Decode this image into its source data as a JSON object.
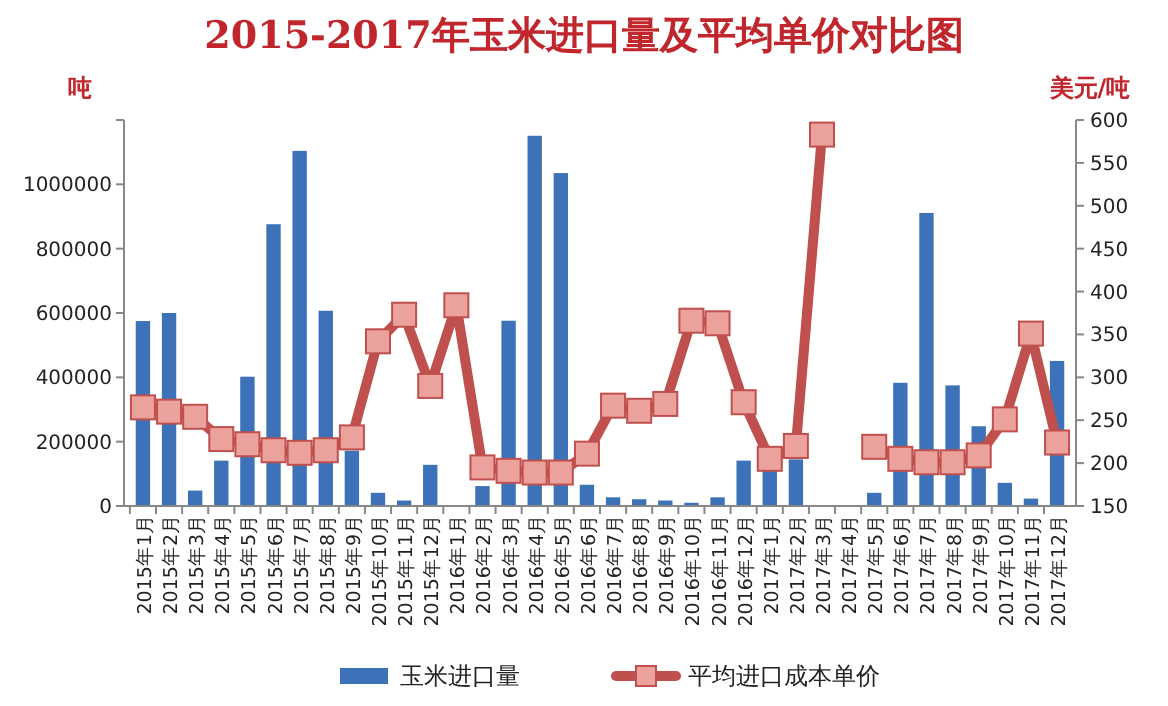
{
  "chart_data": {
    "type": "bar",
    "title": "2015-2017年玉米进口量及平均单价对比图",
    "ylabel": "吨",
    "y2label": "美元/吨",
    "categories": [
      "2015年1月",
      "2015年2月",
      "2015年3月",
      "2015年4月",
      "2015年5月",
      "2015年6月",
      "2015年7月",
      "2015年8月",
      "2015年9月",
      "2015年10月",
      "2015年11月",
      "2015年12月",
      "2016年1月",
      "2016年2月",
      "2016年3月",
      "2016年4月",
      "2016年5月",
      "2016年6月",
      "2016年7月",
      "2016年8月",
      "2016年9月",
      "2016年10月",
      "2016年11月",
      "2016年12月",
      "2017年1月",
      "2017年2月",
      "2017年3月",
      "2017年4月",
      "2017年5月",
      "2017年6月",
      "2017年7月",
      "2017年8月",
      "2017年9月",
      "2017年10月",
      "2017年11月",
      "2017年12月"
    ],
    "series": [
      {
        "name": "玉米进口量",
        "color": "#3d72b8",
        "values": [
          575000,
          600000,
          48000,
          141000,
          402000,
          876000,
          1104000,
          607000,
          172000,
          41000,
          17000,
          128000,
          null,
          62000,
          576000,
          1151000,
          1035000,
          66000,
          27000,
          21000,
          17000,
          10000,
          27000,
          141000,
          120000,
          145000,
          null,
          null,
          41000,
          383000,
          911000,
          375000,
          248000,
          72000,
          23000,
          451000
        ]
      },
      {
        "name": "平均进口成本单价",
        "type": "line",
        "axis": "y2",
        "color": "#c0504d",
        "values": [
          265,
          260,
          254,
          228,
          222,
          215,
          212,
          215,
          230,
          342,
          373,
          290,
          384,
          195,
          191,
          189,
          189,
          211,
          267,
          261,
          269,
          366,
          363,
          271,
          205,
          220,
          583,
          null,
          219,
          205,
          201,
          201,
          209,
          251,
          351,
          224
        ]
      }
    ],
    "ylim": [
      0,
      1200000
    ],
    "yticks": [
      0,
      200000,
      400000,
      600000,
      800000,
      1000000,
      {
        "value": 1200000,
        "label": null
      }
    ],
    "y2lim": [
      150,
      600
    ],
    "y2ticks": [
      150,
      200,
      250,
      300,
      350,
      400,
      450,
      500,
      550,
      600
    ],
    "grid": false,
    "legend": "bottom",
    "marker": "square",
    "line_style": "solid"
  }
}
